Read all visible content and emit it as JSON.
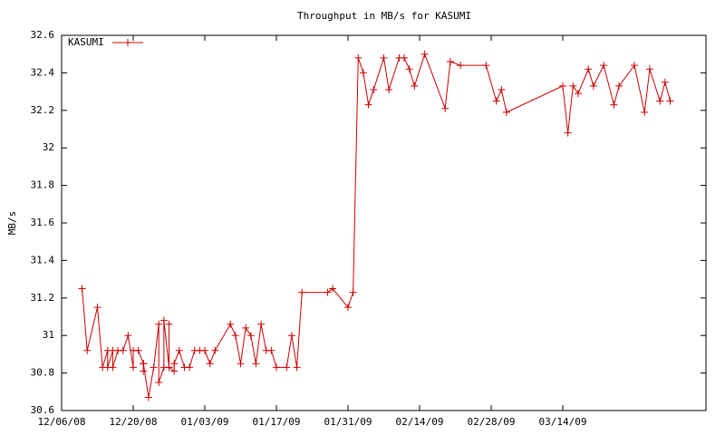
{
  "chart_data": {
    "type": "line",
    "title": "Throughput in MB/s for KASUMI",
    "y_label": "MB/s",
    "x": [
      "12/10/08",
      "12/11/08",
      "12/13/08",
      "12/14/08",
      "12/15/08",
      "12/15/08",
      "12/16/08",
      "12/16/08",
      "12/17/08",
      "12/18/08",
      "12/19/08",
      "12/20/08",
      "12/20/08",
      "12/21/08",
      "12/22/08",
      "12/22/08",
      "12/22/08",
      "12/23/08",
      "12/24/08",
      "12/25/08",
      "12/25/08",
      "12/26/08",
      "12/26/08",
      "12/27/08",
      "12/27/08",
      "12/27/08",
      "12/28/08",
      "12/28/08",
      "12/29/08",
      "12/30/08",
      "12/31/08",
      "01/01/09",
      "01/02/09",
      "01/03/09",
      "01/04/09",
      "01/05/09",
      "01/08/09",
      "01/09/09",
      "01/10/09",
      "01/11/09",
      "01/12/09",
      "01/13/09",
      "01/14/09",
      "01/15/09",
      "01/16/09",
      "01/17/09",
      "01/19/09",
      "01/20/09",
      "01/21/09",
      "01/22/09",
      "01/27/09",
      "01/28/09",
      "01/31/09",
      "02/01/09",
      "02/02/09",
      "02/03/09",
      "02/04/09",
      "02/05/09",
      "02/07/09",
      "02/08/09",
      "02/10/09",
      "02/11/09",
      "02/12/09",
      "02/13/09",
      "02/15/09",
      "02/19/09",
      "02/20/09",
      "02/22/09",
      "02/27/09",
      "03/01/09",
      "03/02/09",
      "03/03/09",
      "03/14/09",
      "03/15/09",
      "03/16/09",
      "03/17/09",
      "03/19/09",
      "03/20/09",
      "03/22/09",
      "03/24/09",
      "03/25/09",
      "03/28/09",
      "03/30/09",
      "03/31/09",
      "04/02/09",
      "04/03/09",
      "04/04/09"
    ],
    "series": [
      {
        "name": "KASUMI",
        "color": "#cc0000",
        "values": [
          31.25,
          30.92,
          31.15,
          30.83,
          30.92,
          30.83,
          30.92,
          30.83,
          30.92,
          30.92,
          31.0,
          30.83,
          30.92,
          30.92,
          30.85,
          30.81,
          30.85,
          30.67,
          30.83,
          31.06,
          30.75,
          30.83,
          31.08,
          30.83,
          31.06,
          30.83,
          30.81,
          30.85,
          30.92,
          30.83,
          30.83,
          30.92,
          30.92,
          30.92,
          30.85,
          30.92,
          31.06,
          31.0,
          30.85,
          31.04,
          31.0,
          30.85,
          31.06,
          30.92,
          30.92,
          30.83,
          30.83,
          31.0,
          30.83,
          31.23,
          31.23,
          31.25,
          31.15,
          31.23,
          32.48,
          32.4,
          32.23,
          32.31,
          32.48,
          32.31,
          32.48,
          32.48,
          32.42,
          32.33,
          32.5,
          32.21,
          32.46,
          32.44,
          32.44,
          32.25,
          32.31,
          32.19,
          32.33,
          32.08,
          32.33,
          32.29,
          32.42,
          32.33,
          32.44,
          32.23,
          32.33,
          32.44,
          32.19,
          32.42,
          32.25,
          32.35,
          32.25
        ]
      }
    ],
    "xlim": [
      "12/06/08",
      "04/11/09"
    ],
    "xticks": [
      "12/06/08",
      "12/20/08",
      "01/03/09",
      "01/17/09",
      "01/31/09",
      "02/14/09",
      "02/28/09",
      "03/14/09"
    ],
    "ylim": [
      30.6,
      32.6
    ],
    "yticks": [
      30.6,
      30.8,
      31,
      31.2,
      31.4,
      31.6,
      31.8,
      32,
      32.2,
      32.4,
      32.6
    ],
    "grid": false,
    "legend": "top-left"
  }
}
